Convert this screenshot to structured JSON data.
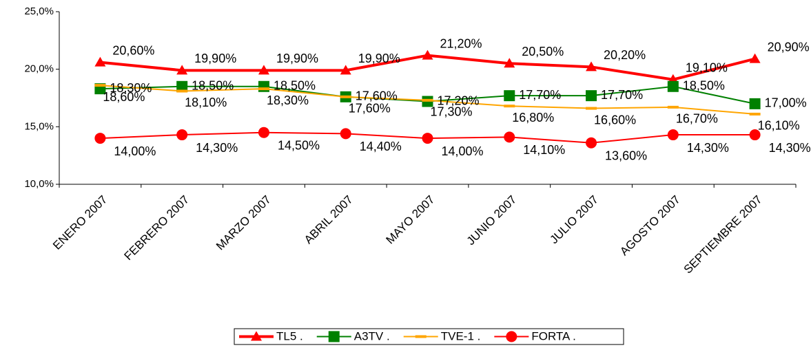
{
  "chart_data": {
    "type": "line",
    "categories": [
      "ENERO 2007",
      "FEBRERO 2007",
      "MARZO 2007",
      "ABRIL 2007",
      "MAYO 2007",
      "JUNIO 2007",
      "JULIO 2007",
      "AGOSTO 2007",
      "SEPTIEMBRE 2007"
    ],
    "ylim": [
      10,
      25
    ],
    "yticks": [
      {
        "value": 10,
        "label": "10,0%"
      },
      {
        "value": 15,
        "label": "15,0%"
      },
      {
        "value": 20,
        "label": "20,0%"
      },
      {
        "value": 25,
        "label": "25,0%"
      }
    ],
    "legend": "bottom",
    "series": [
      {
        "name": "TL5 .",
        "color": "#ff0000",
        "marker": "triangle",
        "values": [
          20.6,
          19.9,
          19.9,
          19.9,
          21.2,
          20.5,
          20.2,
          19.1,
          20.9
        ],
        "value_labels": [
          "20,60%",
          "19,90%",
          "19,90%",
          "19,90%",
          "21,20%",
          "20,50%",
          "20,20%",
          "19,10%",
          "20,90%"
        ]
      },
      {
        "name": "A3TV .",
        "color": "#008000",
        "marker": "square",
        "values": [
          18.3,
          18.5,
          18.5,
          17.6,
          17.2,
          17.7,
          17.7,
          18.5,
          17.0
        ],
        "value_labels": [
          "18,30%",
          "18,50%",
          "18,50%",
          "17,60%",
          "17,20%",
          "17,70%",
          "17,70%",
          "18,50%",
          "17,00%"
        ]
      },
      {
        "name": "TVE-1 .",
        "color": "#ffa500",
        "marker": "dash",
        "values": [
          18.6,
          18.1,
          18.3,
          17.6,
          17.3,
          16.8,
          16.6,
          16.7,
          16.1
        ],
        "value_labels": [
          "18,60%",
          "18,10%",
          "18,30%",
          "17,60%",
          "17,30%",
          "16,80%",
          "16,60%",
          "16,70%",
          "16,10%"
        ]
      },
      {
        "name": "FORTA .",
        "color": "#ff0000",
        "marker": "circle",
        "values": [
          14.0,
          14.3,
          14.5,
          14.4,
          14.0,
          14.1,
          13.6,
          14.3,
          14.3
        ],
        "value_labels": [
          "14,00%",
          "14,30%",
          "14,50%",
          "14,40%",
          "14,00%",
          "14,10%",
          "13,60%",
          "14,30%",
          "14,30%"
        ]
      }
    ]
  }
}
